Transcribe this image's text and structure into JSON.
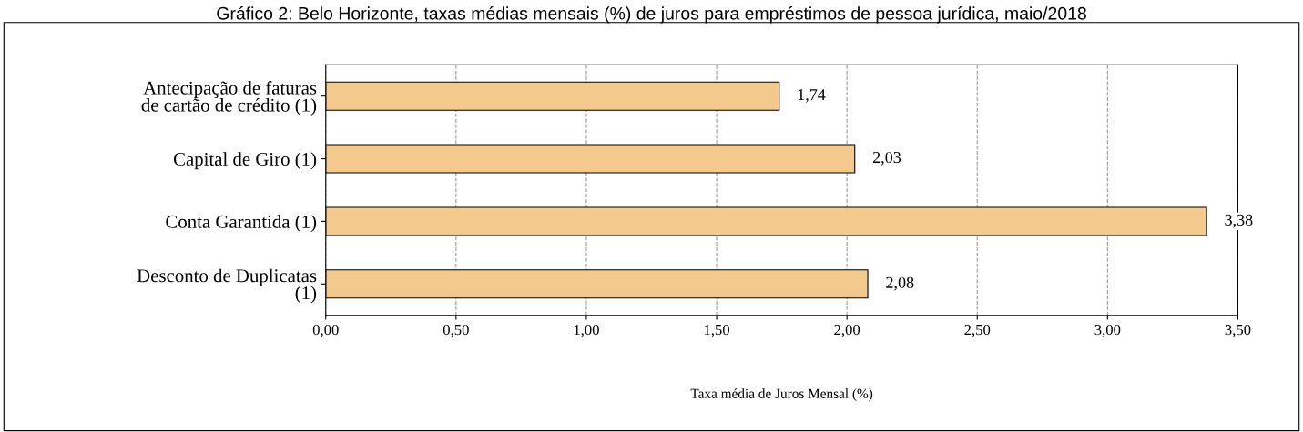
{
  "chart_data": {
    "type": "bar",
    "orientation": "horizontal",
    "title": "Gráfico 2: Belo Horizonte, taxas médias mensais (%) de juros para empréstimos de pessoa jurídica, maio/2018",
    "xlabel": "Taxa média de Juros Mensal (%)",
    "categories": [
      "Antecipação de faturas\nde cartão de crédito (1)",
      "Capital de Giro (1)",
      "Conta Garantida (1)",
      "Desconto de Duplicatas\n(1)"
    ],
    "values": [
      1.74,
      2.03,
      3.38,
      2.08
    ],
    "value_labels": [
      "1,74",
      "2,03",
      "3,38",
      "2,08"
    ],
    "color": "#f3c98e",
    "xlim": [
      0,
      3.5
    ],
    "xticks": [
      {
        "value": 0,
        "label": "0,00"
      },
      {
        "value": 0.5,
        "label": "0,50"
      },
      {
        "value": 1,
        "label": "1,00"
      },
      {
        "value": 1.5,
        "label": "1,50"
      },
      {
        "value": 2,
        "label": "2,00"
      },
      {
        "value": 2.5,
        "label": "2,50"
      },
      {
        "value": 3,
        "label": "3,00"
      },
      {
        "value": 3.5,
        "label": "3,50"
      }
    ],
    "grid": "x",
    "legend": false
  }
}
